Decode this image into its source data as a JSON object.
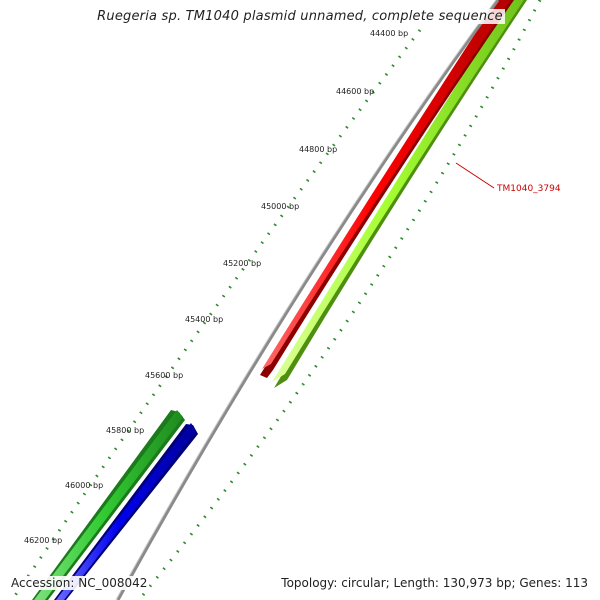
{
  "title": "Ruegeria sp. TM1040 plasmid unnamed, complete sequence",
  "footer": {
    "accession": "Accession: NC_008042",
    "summary": "Topology: circular; Length: 130,973 bp; Genes: 113"
  },
  "ticks": [
    {
      "label": "44400 bp"
    },
    {
      "label": "44600 bp"
    },
    {
      "label": "44800 bp"
    },
    {
      "label": "45000 bp"
    },
    {
      "label": "45200 bp"
    },
    {
      "label": "45400 bp"
    },
    {
      "label": "45600 bp"
    },
    {
      "label": "45800 bp"
    },
    {
      "label": "46000 bp"
    },
    {
      "label": "46200 bp"
    }
  ],
  "features": [
    {
      "name": "TM1040_3794",
      "color": "#ff0000",
      "strand": "forward"
    },
    {
      "name": "",
      "color": "#a6ff33",
      "strand": "forward"
    },
    {
      "name": "",
      "color": "#33cc33",
      "strand": "reverse"
    },
    {
      "name": "",
      "color": "#0000ee",
      "strand": "reverse"
    }
  ],
  "colors": {
    "backbone": "#8a8a8a",
    "tick": "#2e8b2e",
    "label": "#cc0000"
  }
}
